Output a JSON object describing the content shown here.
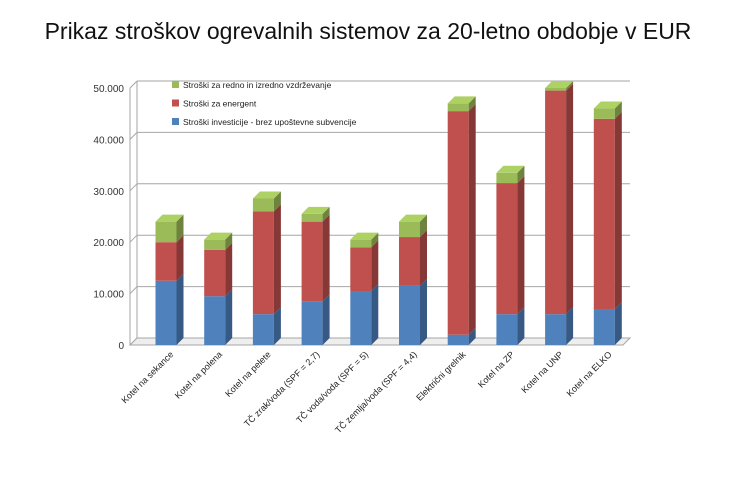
{
  "chart_data": {
    "type": "bar",
    "stacked": true,
    "title": "Prikaz stroškov ogrevalnih sistemov za 20-letno obdobje v EUR",
    "xlabel": "",
    "ylabel": "",
    "ylim": [
      0,
      50000
    ],
    "yticks": [
      "0",
      "10.000",
      "20.000",
      "30.000",
      "40.000",
      "50.000"
    ],
    "ytick_values": [
      0,
      10000,
      20000,
      30000,
      40000,
      50000
    ],
    "categories": [
      "Kotel na sekance",
      "Kotel na polena",
      "Kotel na pelete",
      "TČ zrak/voda (SPF = 2,7)",
      "TČ voda/voda (SPF = 5)",
      "TČ zemlja/voda (SPF = 4,4)",
      "Električni grelnik",
      "Kotel na ZP",
      "Kotel na UNP",
      "Kotel na ELKO"
    ],
    "series": [
      {
        "name": "Stroški investicije - brez upoštevne subvencije",
        "color": "#4F81BD",
        "values": [
          12500,
          9500,
          6000,
          8500,
          10500,
          11500,
          2000,
          6000,
          6000,
          7000
        ]
      },
      {
        "name": "Stroški za energent",
        "color": "#C0504D",
        "values": [
          7500,
          9000,
          20000,
          15500,
          8500,
          9500,
          43500,
          25500,
          43500,
          37000
        ]
      },
      {
        "name": "Stroški za redno in izredno vzdrževanje",
        "color": "#9BBB59",
        "values": [
          4000,
          2000,
          2500,
          1500,
          1500,
          3000,
          1500,
          2000,
          500,
          2000
        ]
      }
    ],
    "legend": [
      {
        "label": "Stroški za redno in izredno vzdrževanje",
        "color": "#9BBB59"
      },
      {
        "label": "Stroški za energent",
        "color": "#C0504D"
      },
      {
        "label": "Stroški investicije - brez upoštevne subvencije",
        "color": "#4F81BD"
      }
    ],
    "legend_position": "top-left",
    "grid": true
  }
}
